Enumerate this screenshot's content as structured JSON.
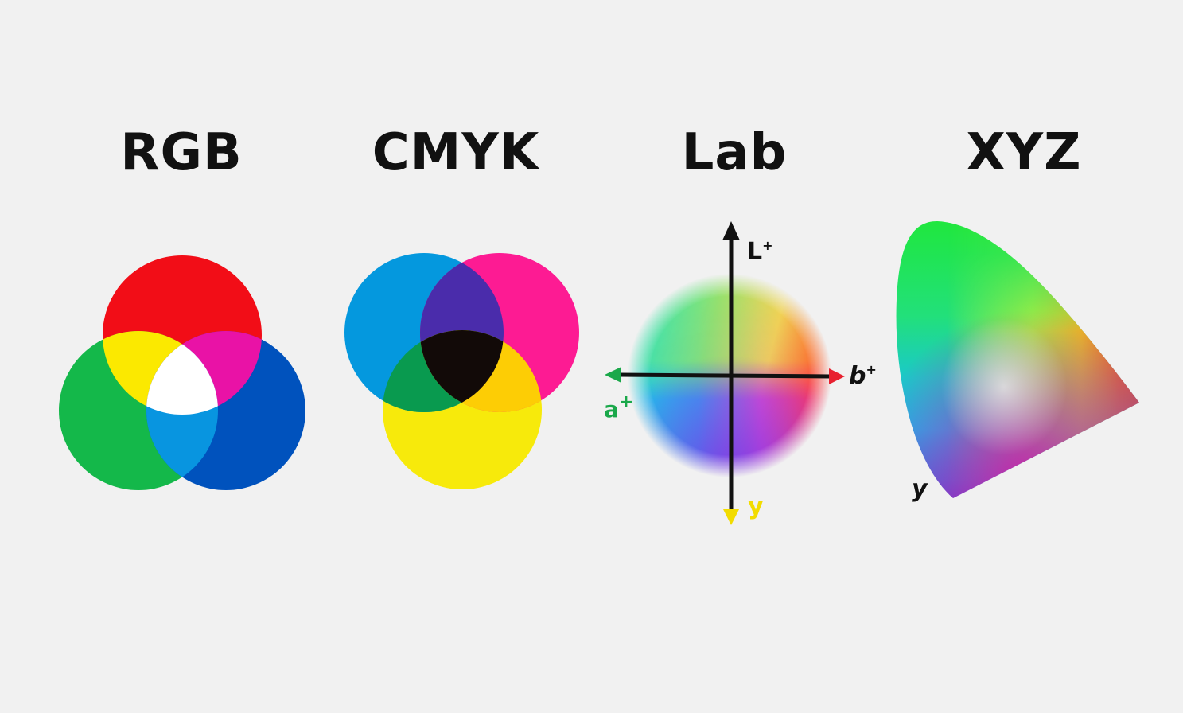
{
  "titles": {
    "rgb": "RGB",
    "cmyk": "CMYK",
    "lab": "Lab",
    "xyz": "XYZ"
  },
  "rgb": {
    "colors": {
      "red": "#f20d17",
      "green": "#14b84a",
      "blue": "#0052bd",
      "yellow": "#fbe900",
      "magenta": "#e912a6",
      "cyan": "#0895e0",
      "white": "#ffffff"
    }
  },
  "cmyk": {
    "colors": {
      "cyan": "#0498de",
      "magenta": "#fd1b93",
      "yellow": "#f7ea0b",
      "blue": "#4a2cab",
      "green": "#099a4f",
      "orange": "#fdcd05",
      "black": "#120a08"
    }
  },
  "lab": {
    "axis_labels": {
      "l": "L",
      "l_sup": "+",
      "a": "a",
      "a_sup": "+",
      "b": "b",
      "b_sup": "+",
      "y": "y"
    },
    "colors": {
      "axis": "#111111",
      "a_arrow": "#1aa84a",
      "b_arrow": "#e8202f",
      "y_arrow": "#f2dc00"
    }
  },
  "xyz": {
    "axis_labels": {
      "y": "y"
    }
  }
}
